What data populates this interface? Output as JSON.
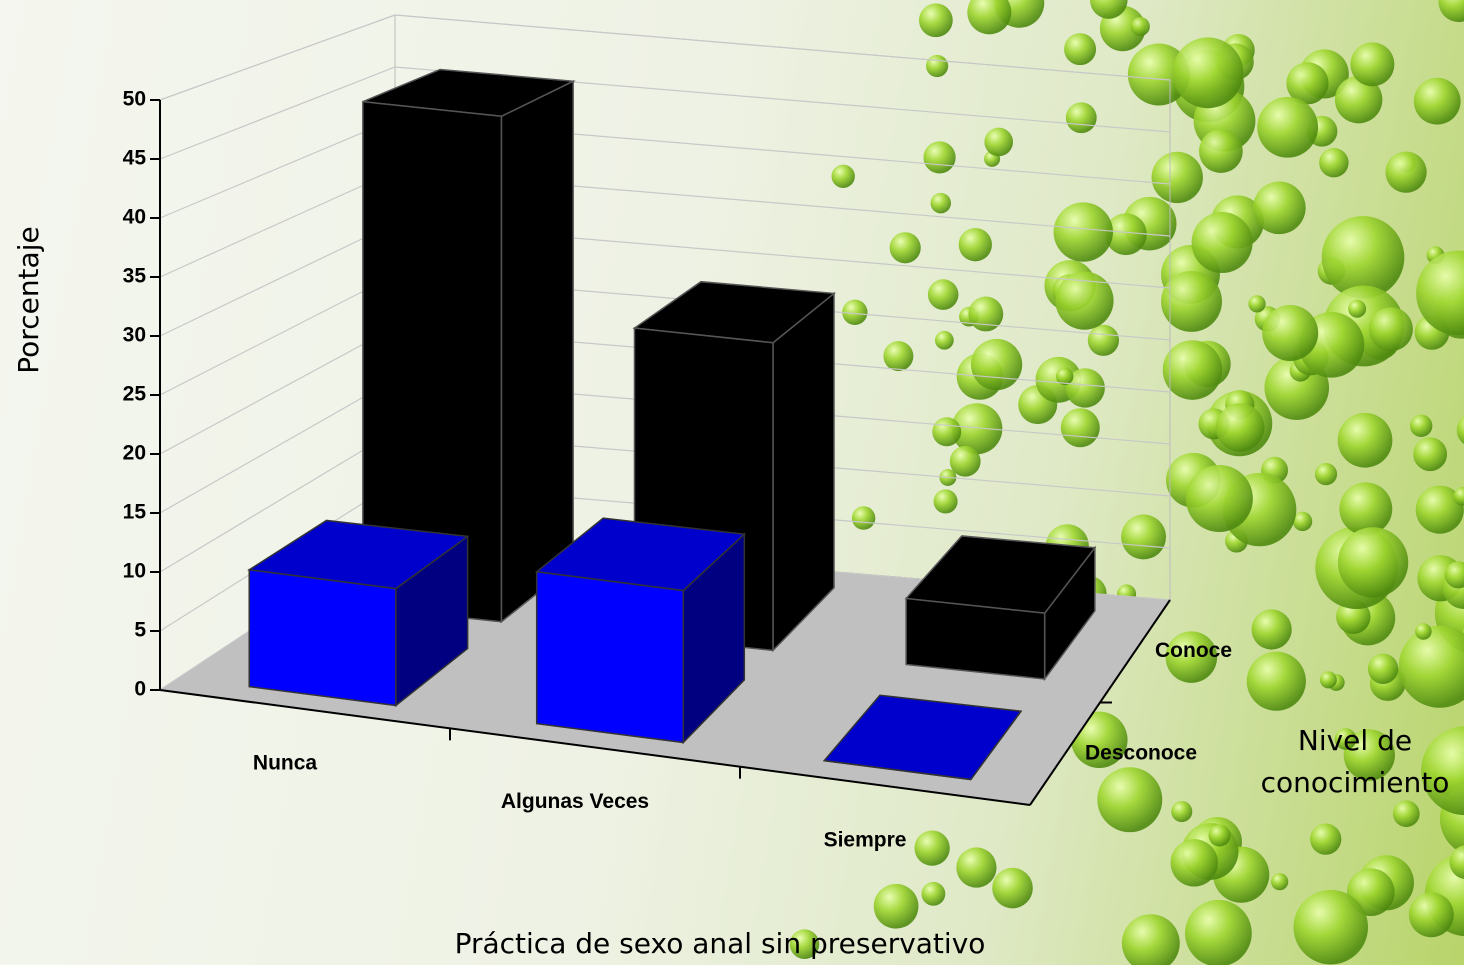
{
  "chart_data": {
    "type": "bar3d",
    "categories": [
      "Nunca",
      "Algunas Veces",
      "Siempre"
    ],
    "series": [
      {
        "name": "Desconoce",
        "color": "#0000ff",
        "values": [
          10,
          13,
          0
        ]
      },
      {
        "name": "Conoce",
        "color": "#000000",
        "values": [
          46,
          28,
          6
        ]
      }
    ],
    "ylim": [
      0,
      50
    ],
    "yticks": [
      0,
      5,
      10,
      15,
      20,
      25,
      30,
      35,
      40,
      45,
      50
    ],
    "grid": true,
    "y_label": "Porcentaje",
    "x_label": "Práctica de sexo anal sin preservativo",
    "z_label": "Nivel de conocimiento"
  }
}
